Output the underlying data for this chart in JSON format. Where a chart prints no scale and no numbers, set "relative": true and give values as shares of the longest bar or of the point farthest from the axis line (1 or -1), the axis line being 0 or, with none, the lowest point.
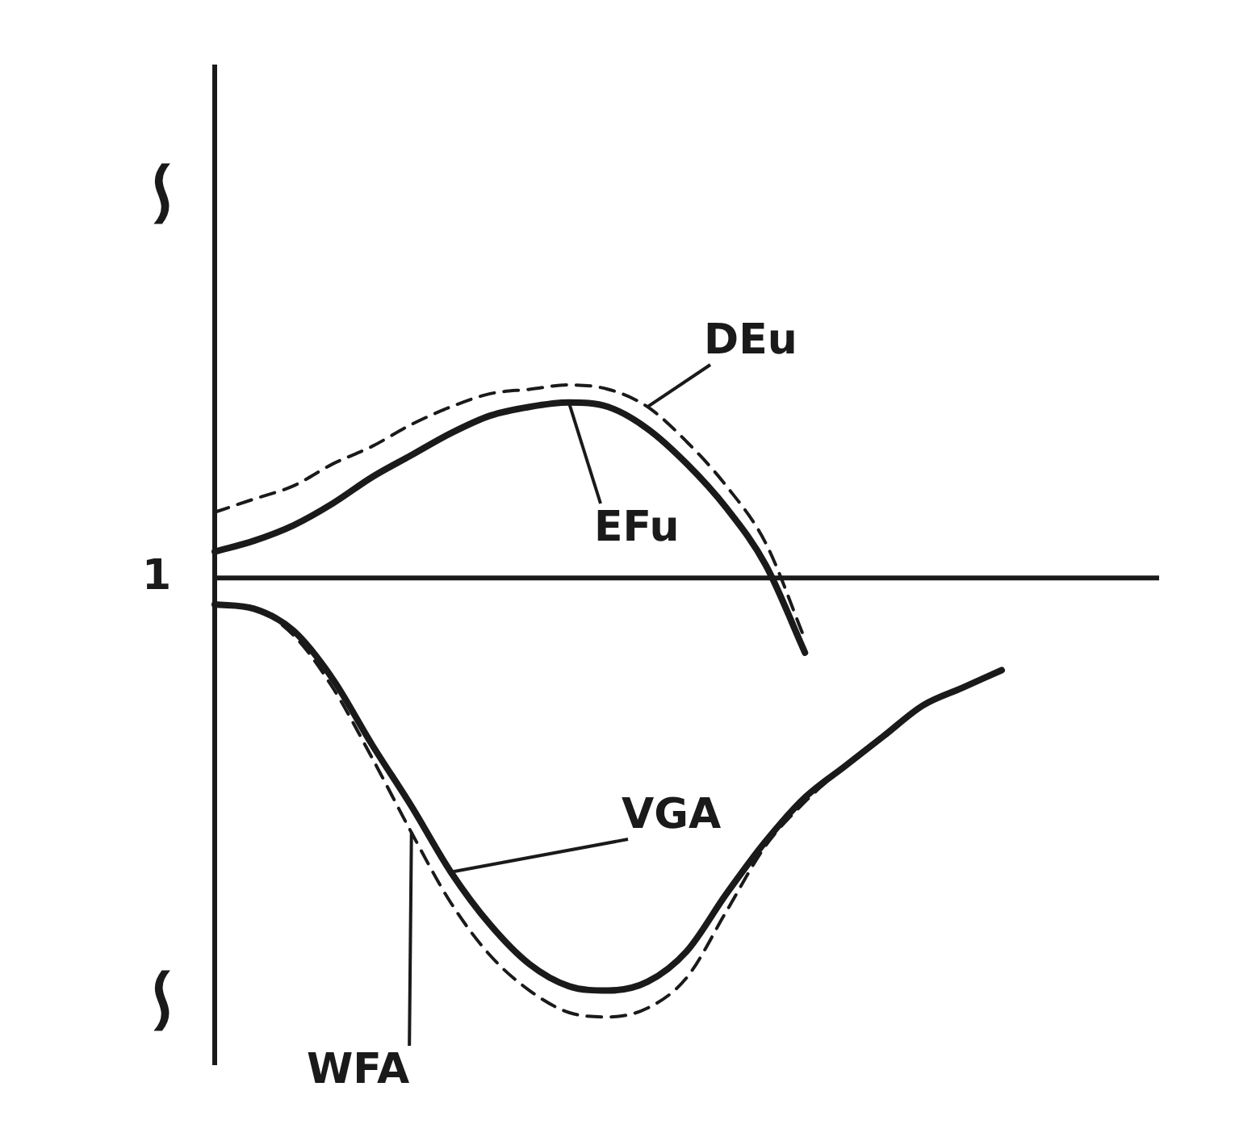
{
  "chart_data": {
    "type": "line",
    "relative": true,
    "legend": false,
    "marker": "none",
    "categories": [
      null,
      null,
      null,
      null,
      null,
      null,
      null,
      null,
      null,
      null,
      null,
      null,
      null,
      null,
      null,
      null,
      null,
      null,
      null,
      null,
      null,
      null,
      null,
      null,
      null
    ],
    "annotations": [
      "∽",
      "1",
      "∽"
    ],
    "series": [
      {
        "name": "DEu",
        "color": "#1a1a1a",
        "line_style": "dashed",
        "values": [
          0.15,
          0.18,
          0.21,
          0.26,
          0.3,
          0.35,
          0.39,
          0.42,
          0.43,
          0.44,
          0.43,
          0.39,
          0.31,
          0.21,
          0.08,
          -0.14,
          null,
          null,
          null,
          null,
          null,
          null,
          null,
          null,
          null
        ]
      },
      {
        "name": "EFu",
        "color": "#1a1a1a",
        "line_style": "solid",
        "values": [
          0.06,
          0.085,
          0.12,
          0.17,
          0.23,
          0.28,
          0.33,
          0.37,
          0.39,
          0.4,
          0.39,
          0.34,
          0.26,
          0.16,
          0.03,
          -0.17,
          null,
          null,
          null,
          null,
          null,
          null,
          null,
          null,
          null
        ]
      },
      {
        "name": "VGA",
        "color": "#1a1a1a",
        "line_style": "solid",
        "values": [
          -0.06,
          -0.07,
          -0.12,
          -0.23,
          -0.38,
          -0.52,
          -0.67,
          -0.79,
          -0.88,
          -0.93,
          -0.94,
          -0.92,
          -0.85,
          -0.72,
          -0.6,
          -0.5,
          -0.43,
          -0.36,
          -0.29,
          -0.25,
          -0.21,
          null,
          null,
          null,
          null
        ]
      },
      {
        "name": "WFA",
        "color": "#1a1a1a",
        "line_style": "dashed",
        "values": [
          -0.06,
          -0.07,
          -0.13,
          -0.25,
          -0.41,
          -0.58,
          -0.74,
          -0.86,
          -0.94,
          -0.99,
          -1,
          -0.98,
          -0.91,
          -0.76,
          -0.61,
          -0.51,
          -0.43,
          -0.36,
          -0.29,
          -0.25,
          -0.21,
          null,
          null,
          null,
          null
        ]
      }
    ]
  }
}
